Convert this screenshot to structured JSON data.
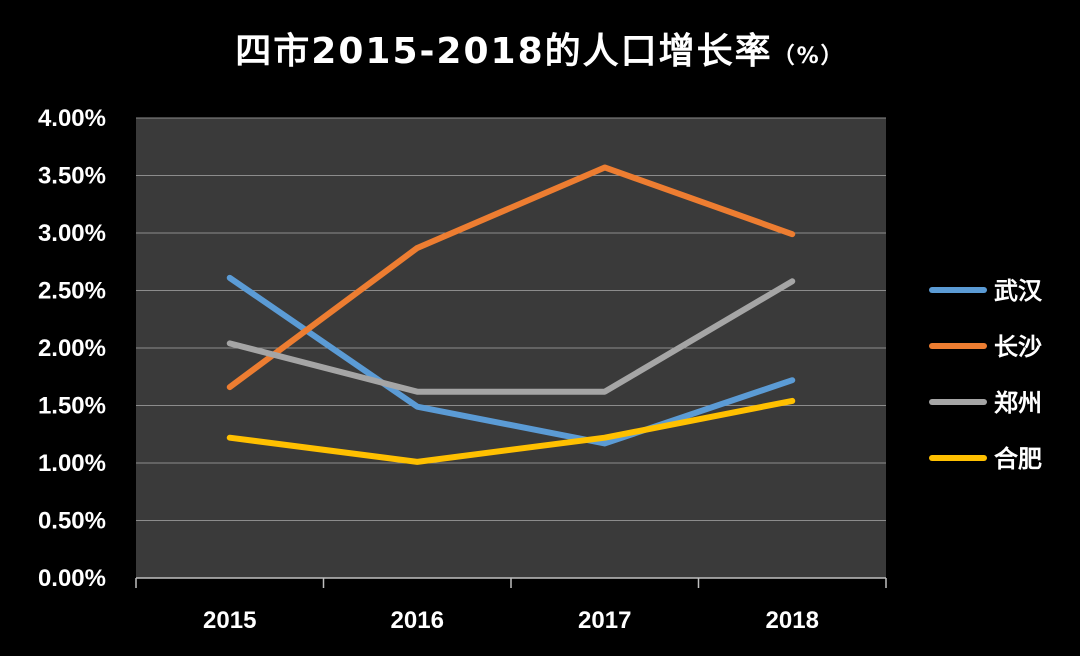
{
  "chart_data": {
    "type": "line",
    "title": "四市2015-2018的人口增长率",
    "title_unit": "（%）",
    "categories": [
      "2015",
      "2016",
      "2017",
      "2018"
    ],
    "ylim": [
      0,
      4
    ],
    "yticks": [
      0,
      0.5,
      1,
      1.5,
      2,
      2.5,
      3,
      3.5,
      4
    ],
    "ytick_labels": [
      "0.00%",
      "0.50%",
      "1.00%",
      "1.50%",
      "2.00%",
      "2.50%",
      "3.00%",
      "3.50%",
      "4.00%"
    ],
    "grid": true,
    "legend_position": "right",
    "series": [
      {
        "name": "武汉",
        "color": "#5b9bd5",
        "values": [
          2.61,
          1.49,
          1.17,
          1.72
        ]
      },
      {
        "name": "长沙",
        "color": "#ed7d31",
        "values": [
          1.66,
          2.87,
          3.57,
          2.99
        ]
      },
      {
        "name": "郑州",
        "color": "#a5a5a5",
        "values": [
          2.04,
          1.62,
          1.62,
          2.58
        ]
      },
      {
        "name": "合肥",
        "color": "#ffc000",
        "values": [
          1.22,
          1.01,
          1.22,
          1.54
        ]
      }
    ]
  }
}
